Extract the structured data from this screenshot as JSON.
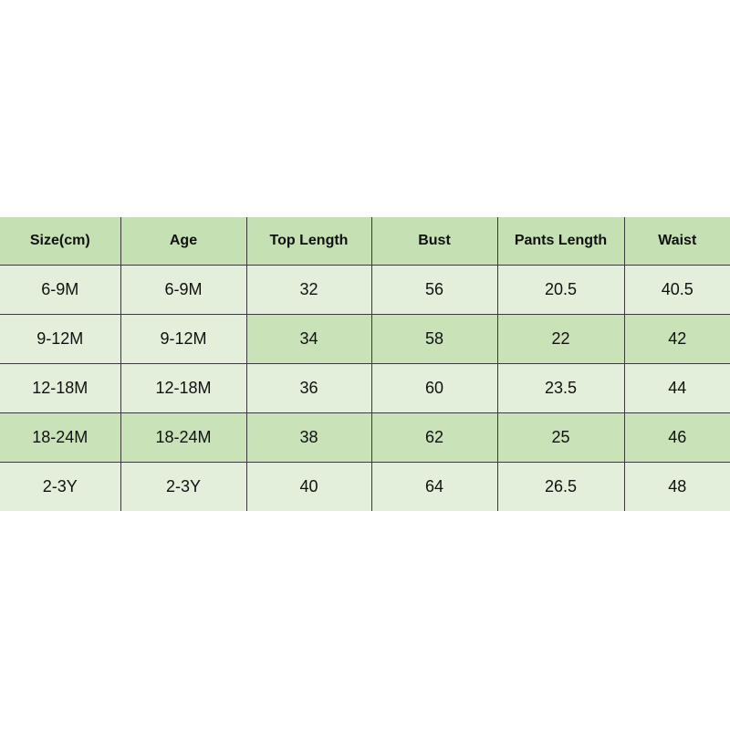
{
  "size_chart": {
    "headers": [
      "Size(cm)",
      "Age",
      "Top Length",
      "Bust",
      "Pants Length",
      "Waist"
    ],
    "rows": [
      [
        "6-9M",
        "6-9M",
        "32",
        "56",
        "20.5",
        "40.5"
      ],
      [
        "9-12M",
        "9-12M",
        "34",
        "58",
        "22",
        "42"
      ],
      [
        "12-18M",
        "12-18M",
        "36",
        "60",
        "23.5",
        "44"
      ],
      [
        "18-24M",
        "18-24M",
        "38",
        "62",
        "25",
        "46"
      ],
      [
        "2-3Y",
        "2-3Y",
        "40",
        "64",
        "26.5",
        "48"
      ]
    ],
    "colors": {
      "header": "#c5e0b3",
      "light_cell": "#e3efda",
      "dark_cell": "#c9e2b8",
      "border": "#3a3a3a"
    }
  }
}
